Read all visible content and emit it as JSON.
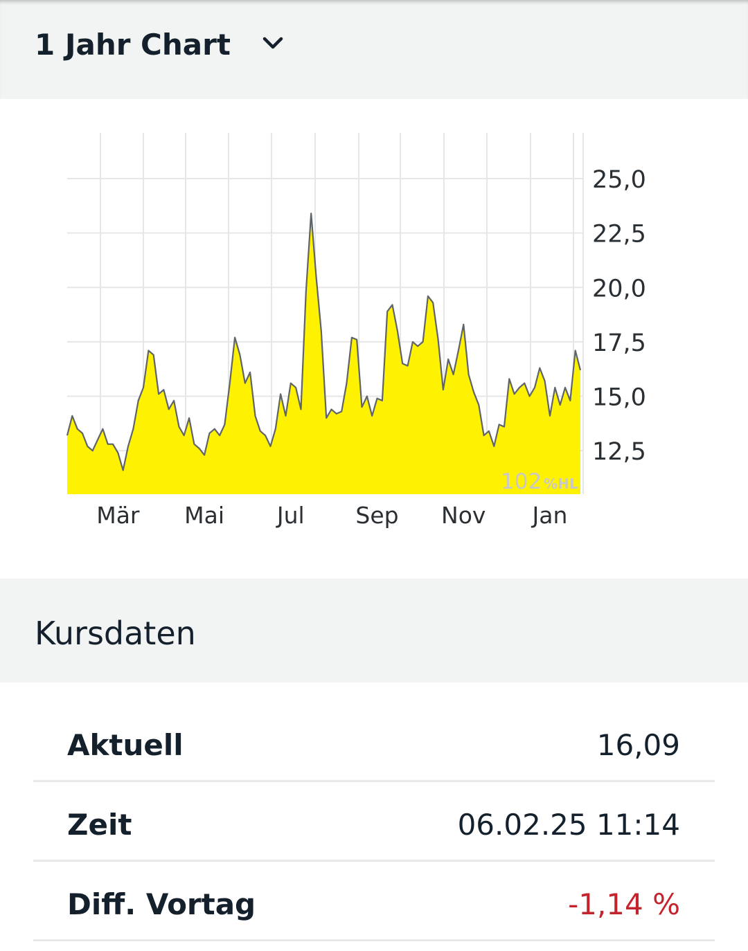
{
  "header": {
    "title": "1 Jahr Chart"
  },
  "chart_data": {
    "type": "area",
    "categories": [
      null,
      null,
      null,
      null,
      null,
      null,
      null,
      null,
      null,
      null,
      "Mär",
      null,
      null,
      null,
      null,
      null,
      null,
      null,
      null,
      null,
      null,
      null,
      null,
      null,
      null,
      null,
      null,
      "Mai",
      null,
      null,
      null,
      null,
      null,
      null,
      null,
      null,
      null,
      null,
      null,
      null,
      null,
      null,
      null,
      null,
      "Jul",
      null,
      null,
      null,
      null,
      null,
      null,
      null,
      null,
      null,
      null,
      null,
      null,
      null,
      null,
      null,
      null,
      "Sep",
      null,
      null,
      null,
      null,
      null,
      null,
      null,
      null,
      null,
      null,
      null,
      null,
      null,
      null,
      null,
      null,
      "Nov",
      null,
      null,
      null,
      null,
      null,
      null,
      null,
      null,
      null,
      null,
      null,
      null,
      null,
      null,
      null,
      null,
      "Jan",
      null,
      null,
      null,
      null,
      null,
      null
    ],
    "values": [
      13.2,
      14.1,
      13.5,
      13.3,
      12.7,
      12.5,
      13.0,
      13.5,
      12.8,
      12.8,
      12.4,
      11.6,
      12.7,
      13.5,
      14.8,
      15.4,
      17.1,
      16.9,
      15.1,
      15.3,
      14.4,
      14.8,
      13.6,
      13.2,
      14.0,
      12.8,
      12.6,
      12.3,
      13.3,
      13.5,
      13.2,
      13.7,
      15.6,
      17.7,
      16.9,
      15.6,
      16.1,
      14.1,
      13.4,
      13.2,
      12.7,
      13.5,
      15.1,
      14.1,
      15.6,
      15.4,
      14.4,
      19.8,
      23.4,
      20.5,
      18.0,
      14.0,
      14.4,
      14.2,
      14.3,
      15.6,
      17.7,
      17.6,
      14.5,
      15.0,
      14.1,
      14.9,
      14.8,
      18.9,
      19.2,
      18.0,
      16.5,
      16.4,
      17.5,
      17.3,
      17.5,
      19.6,
      19.3,
      17.6,
      15.3,
      16.7,
      16.0,
      17.1,
      18.3,
      16.0,
      15.2,
      14.6,
      13.2,
      13.4,
      12.7,
      13.7,
      13.6,
      15.8,
      15.1,
      15.4,
      15.6,
      15.0,
      15.4,
      16.3,
      15.7,
      14.1,
      15.4,
      14.6,
      15.4,
      14.8,
      17.1,
      16.2
    ],
    "color": "#fff200",
    "line_color": "#5f6469",
    "ylim": [
      10.5,
      27.1
    ],
    "yticks": [
      {
        "value": 12.5,
        "label": "12,5"
      },
      {
        "value": 15,
        "label": "15,0"
      },
      {
        "value": 17.5,
        "label": "17,5"
      },
      {
        "value": 20,
        "label": "20,0"
      },
      {
        "value": 22.5,
        "label": "22,5"
      },
      {
        "value": 25,
        "label": "25,0"
      }
    ],
    "grid": true,
    "watermark": {
      "number": "102",
      "unit": "%HL"
    }
  },
  "kursdaten": {
    "title": "Kursdaten",
    "rows": [
      [
        "Aktuell",
        "16,09"
      ],
      [
        "Zeit",
        "06.02.25 11:14"
      ],
      [
        "Diff. Vortag",
        "-1,14 %"
      ]
    ]
  }
}
